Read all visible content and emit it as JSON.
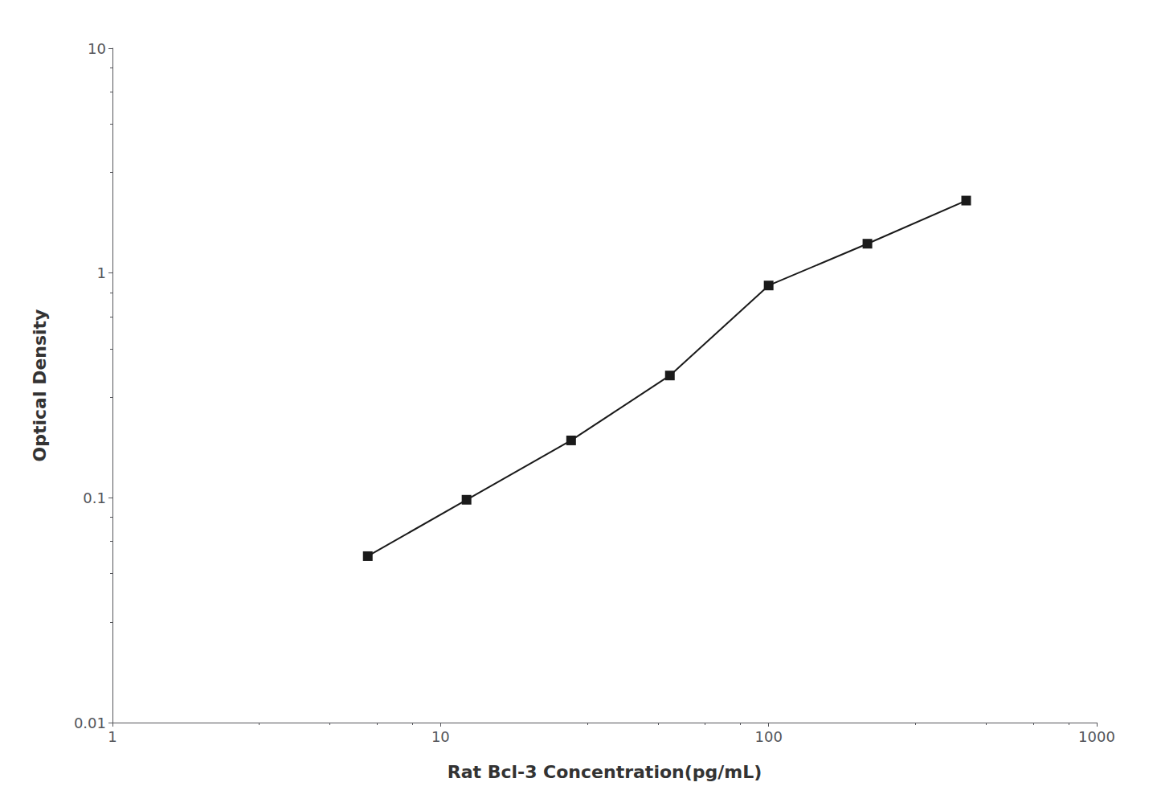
{
  "chart_data": {
    "type": "line",
    "x": [
      6,
      12,
      25,
      50,
      100,
      200,
      400
    ],
    "values": [
      0.055,
      0.098,
      0.18,
      0.35,
      0.88,
      1.35,
      2.1
    ],
    "xlabel": "Rat Bcl-3 Concentration(pg/mL)",
    "ylabel": "Optical Density",
    "xlim": [
      1,
      1000
    ],
    "ylim": [
      0.01,
      10
    ],
    "xticks": [
      1,
      10,
      100,
      1000
    ],
    "yticks": [
      0.01,
      0.1,
      1,
      10
    ],
    "log": true,
    "grid": false,
    "color": "#1a1a1a",
    "marker": "square"
  }
}
